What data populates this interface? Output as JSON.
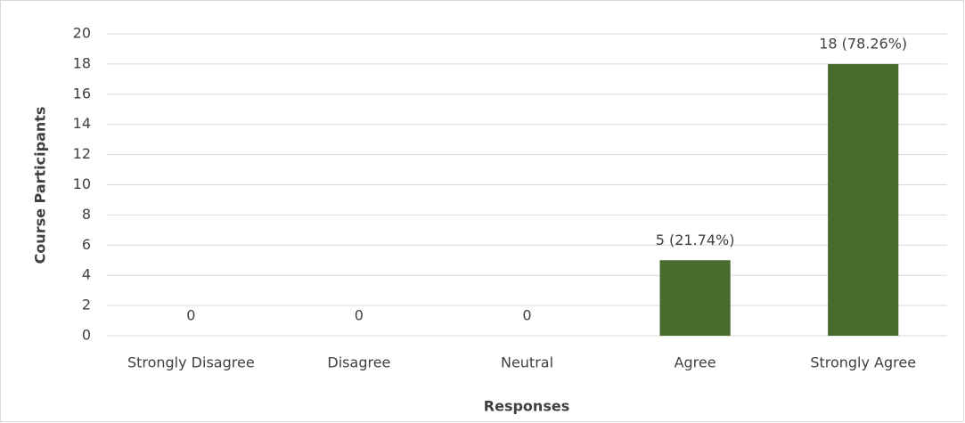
{
  "chart_data": {
    "type": "bar",
    "categories": [
      "Strongly Disagree",
      "Disagree",
      "Neutral",
      "Agree",
      "Strongly Agree"
    ],
    "values": [
      0,
      0,
      0,
      5,
      18
    ],
    "value_labels": [
      "0",
      "0",
      "0",
      "5 (21.74%)",
      "18 (78.26%)"
    ],
    "color": "#466b2d",
    "x_label": "Responses",
    "y_label": "Course Participants",
    "ylim": [
      0,
      20
    ],
    "yticks": [
      0,
      2,
      4,
      6,
      8,
      10,
      12,
      14,
      16,
      18,
      20
    ],
    "grid": true
  }
}
